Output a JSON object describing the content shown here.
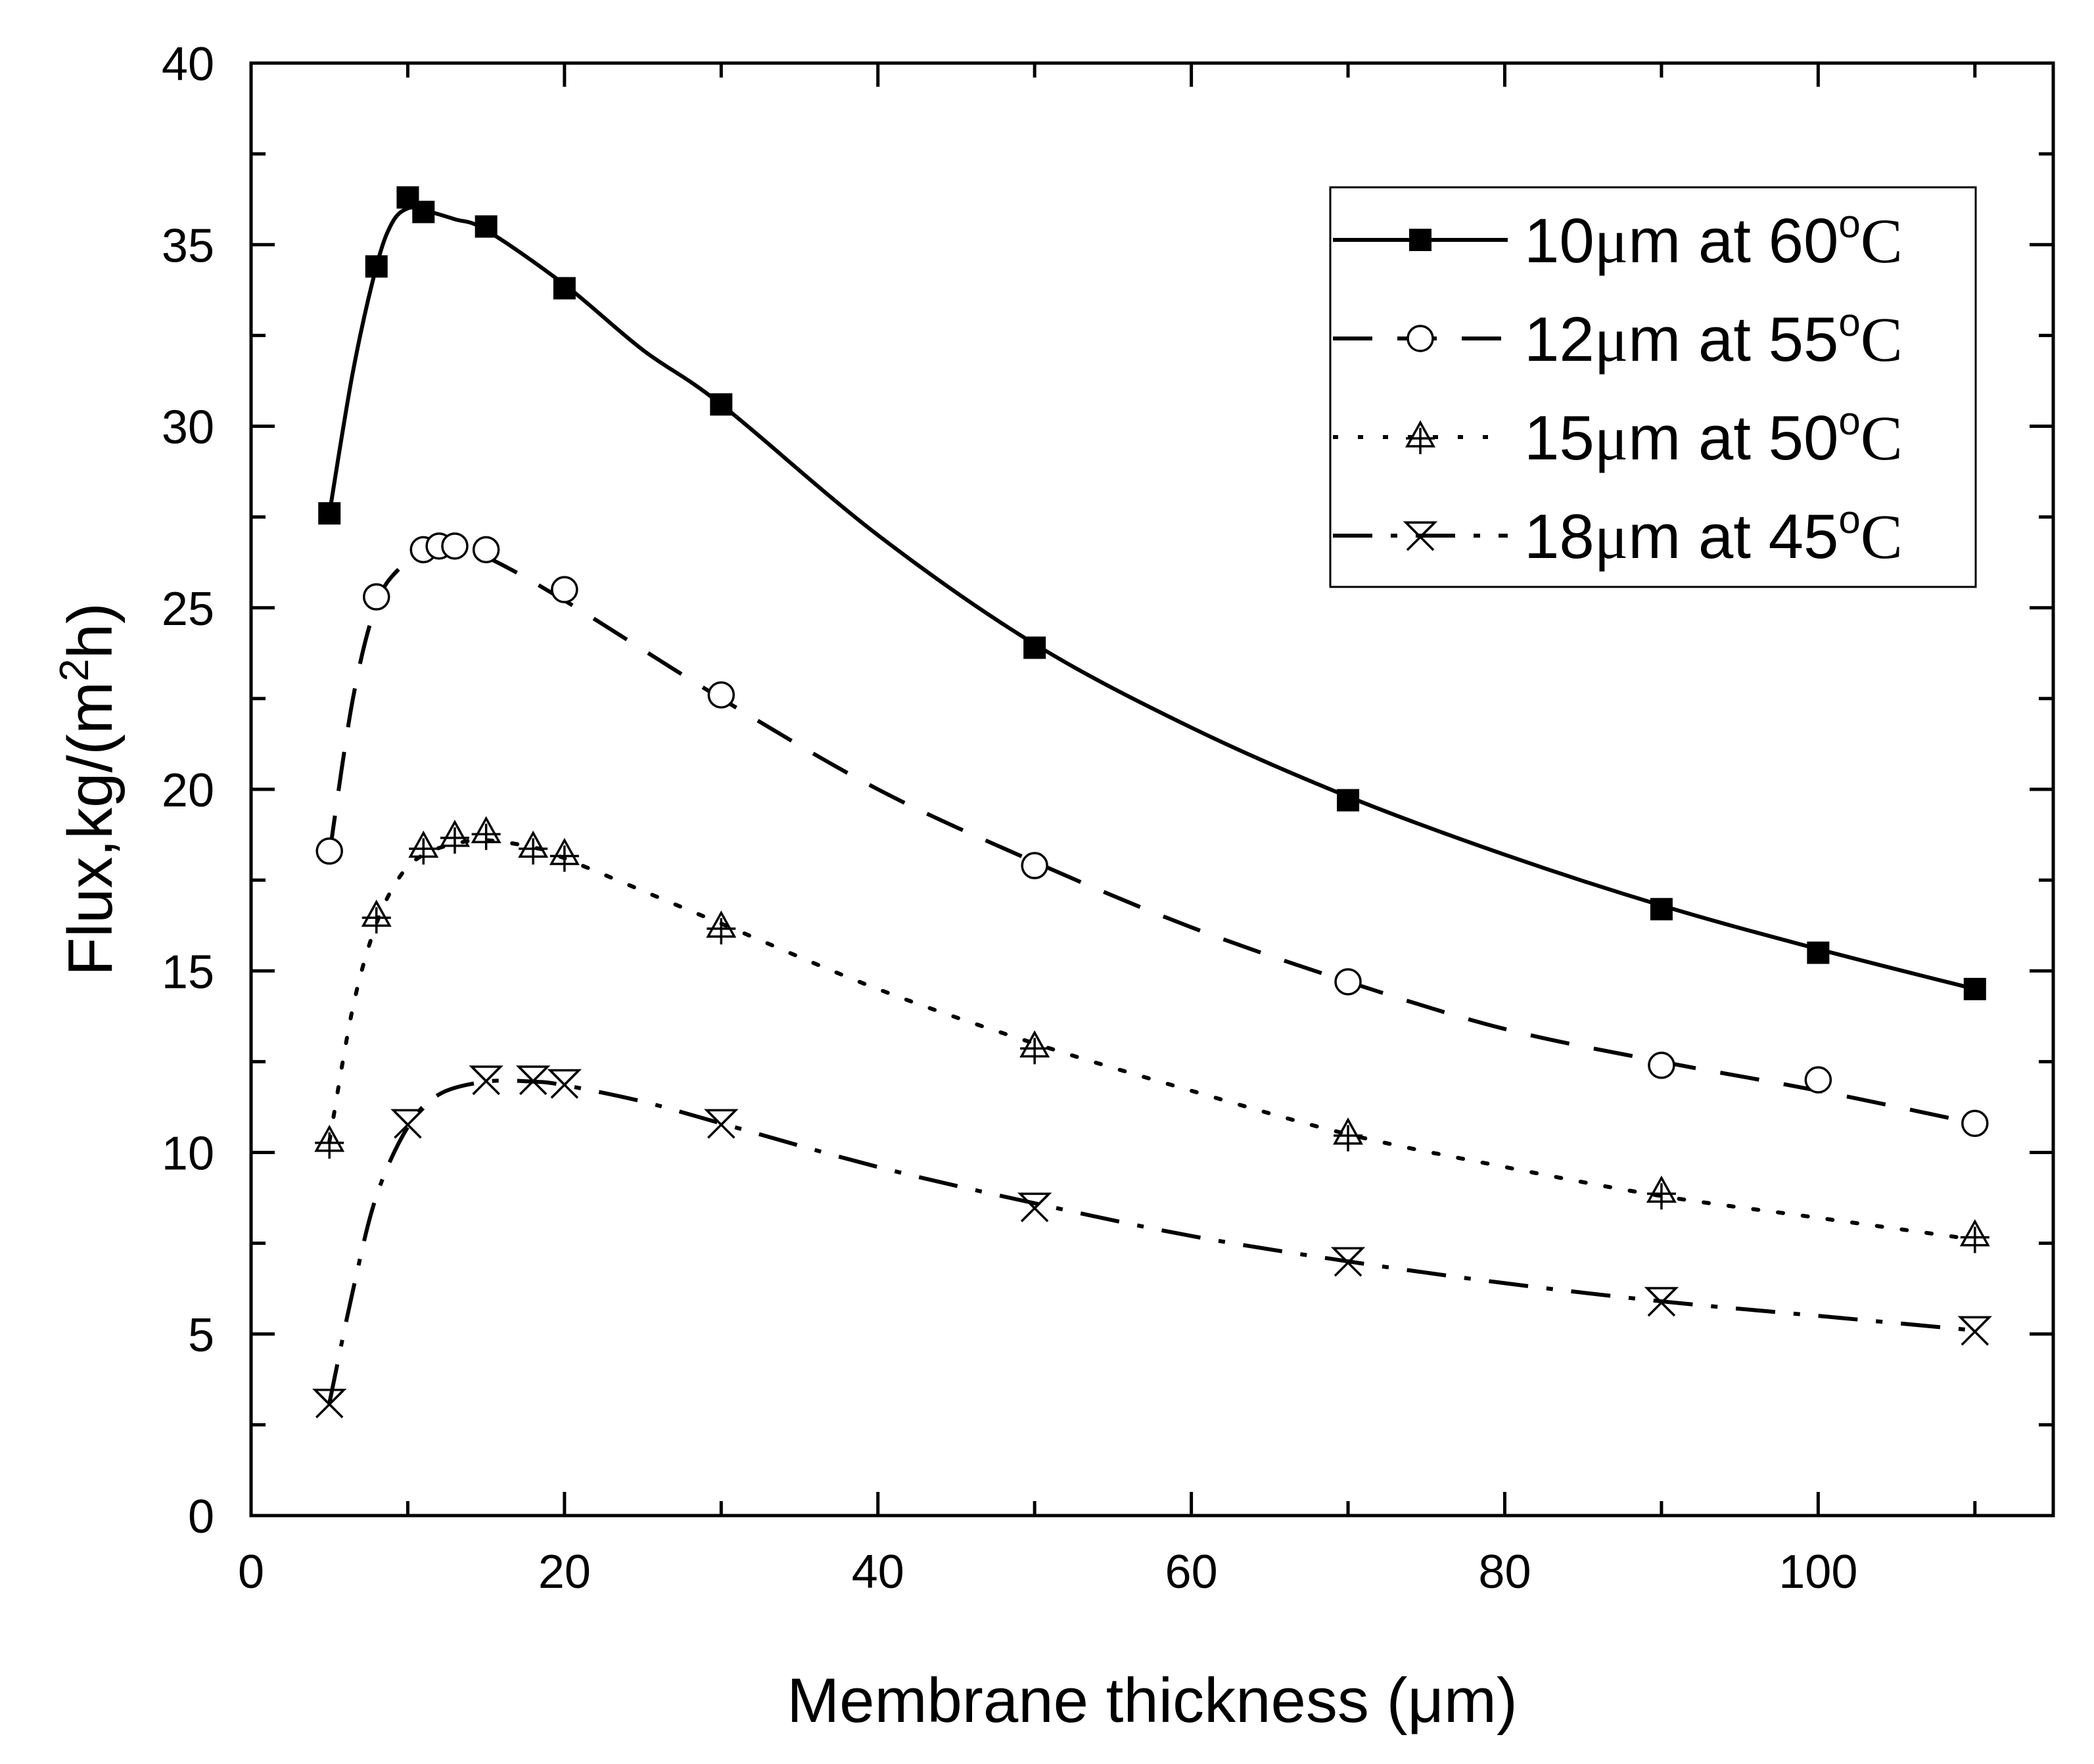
{
  "chart_data": {
    "type": "line",
    "xlabel": "Membrane thickness (μm)",
    "ylabel": {
      "prefix": "Flux,kg/(m",
      "sup": "2",
      "suffix": "h)"
    },
    "xlim": [
      0,
      115
    ],
    "ylim": [
      0,
      40
    ],
    "x_ticks": [
      0,
      20,
      40,
      60,
      80,
      100
    ],
    "y_ticks": [
      0,
      5,
      10,
      15,
      20,
      25,
      30,
      35,
      40
    ],
    "legend_position": "top-right",
    "series": [
      {
        "name": "10μm at 60°C",
        "label_parts": {
          "num": "10",
          "mu": "μ",
          "mid": "m at 60",
          "deg": "o",
          "unit": "C"
        },
        "marker": "filled-square",
        "line": "solid",
        "x": [
          5,
          8,
          10,
          11,
          15,
          20,
          30,
          50,
          70,
          90,
          100,
          110
        ],
        "y": [
          27.6,
          34.4,
          36.3,
          35.9,
          35.5,
          33.8,
          30.6,
          23.9,
          19.7,
          16.7,
          15.5,
          14.5
        ],
        "curve": [
          [
            5,
            27.6
          ],
          [
            6.5,
            31.5
          ],
          [
            8,
            34.4
          ],
          [
            9,
            35.6
          ],
          [
            10,
            36.0
          ],
          [
            11,
            35.95
          ],
          [
            13,
            35.7
          ],
          [
            15,
            35.4
          ],
          [
            20,
            33.9
          ],
          [
            25,
            32.1
          ],
          [
            30,
            30.6
          ],
          [
            40,
            27.0
          ],
          [
            50,
            24.0
          ],
          [
            60,
            21.7
          ],
          [
            70,
            19.8
          ],
          [
            80,
            18.2
          ],
          [
            90,
            16.8
          ],
          [
            100,
            15.6
          ],
          [
            110,
            14.5
          ]
        ]
      },
      {
        "name": "12μm at 55°C",
        "label_parts": {
          "num": "12",
          "mu": "μ",
          "mid": "m at 55",
          "deg": "o",
          "unit": "C"
        },
        "marker": "open-circle",
        "line": "dashed",
        "x": [
          5,
          8,
          11,
          12,
          13,
          15,
          20,
          30,
          50,
          70,
          90,
          100,
          110
        ],
        "y": [
          18.3,
          25.3,
          26.6,
          26.7,
          26.7,
          26.6,
          25.5,
          22.6,
          17.9,
          14.7,
          12.4,
          12.0,
          10.8
        ],
        "curve": [
          [
            5,
            18.2
          ],
          [
            6.5,
            22.5
          ],
          [
            8,
            25.1
          ],
          [
            9.5,
            26.1
          ],
          [
            11,
            26.5
          ],
          [
            13,
            26.6
          ],
          [
            15,
            26.4
          ],
          [
            20,
            25.2
          ],
          [
            30,
            22.5
          ],
          [
            40,
            20.0
          ],
          [
            50,
            18.0
          ],
          [
            60,
            16.2
          ],
          [
            70,
            14.7
          ],
          [
            80,
            13.4
          ],
          [
            90,
            12.5
          ],
          [
            100,
            11.7
          ],
          [
            110,
            10.8
          ]
        ]
      },
      {
        "name": "15μm at 50°C",
        "label_parts": {
          "num": "15",
          "mu": "μ",
          "mid": "m at 50",
          "deg": "o",
          "unit": "C"
        },
        "marker": "open-triangle-plus",
        "line": "dotted",
        "x": [
          5,
          8,
          11,
          13,
          15,
          18,
          20,
          30,
          50,
          70,
          90,
          110
        ],
        "y": [
          10.3,
          16.5,
          18.4,
          18.7,
          18.8,
          18.4,
          18.2,
          16.2,
          12.9,
          10.5,
          8.9,
          7.7
        ],
        "curve": [
          [
            5,
            10.3
          ],
          [
            6.5,
            14.0
          ],
          [
            8,
            16.3
          ],
          [
            9.5,
            17.6
          ],
          [
            11,
            18.2
          ],
          [
            13,
            18.5
          ],
          [
            15,
            18.6
          ],
          [
            18,
            18.4
          ],
          [
            20,
            18.1
          ],
          [
            30,
            16.3
          ],
          [
            40,
            14.5
          ],
          [
            50,
            13.0
          ],
          [
            60,
            11.7
          ],
          [
            70,
            10.5
          ],
          [
            80,
            9.6
          ],
          [
            90,
            8.8
          ],
          [
            100,
            8.2
          ],
          [
            110,
            7.6
          ]
        ]
      },
      {
        "name": "18μm at 45°C",
        "label_parts": {
          "num": "18",
          "mu": "μ",
          "mid": "m at 45",
          "deg": "o",
          "unit": "C"
        },
        "marker": "open-hourglass",
        "line": "dash-dot",
        "x": [
          5,
          10,
          15,
          18,
          20,
          30,
          50,
          70,
          90,
          110
        ],
        "y": [
          3.1,
          10.8,
          12.0,
          12.0,
          11.9,
          10.8,
          8.5,
          7.0,
          5.9,
          5.1
        ],
        "curve": [
          [
            5,
            3.1
          ],
          [
            6.5,
            6.2
          ],
          [
            8,
            8.8
          ],
          [
            10,
            10.7
          ],
          [
            12,
            11.6
          ],
          [
            15,
            11.95
          ],
          [
            18,
            11.95
          ],
          [
            20,
            11.85
          ],
          [
            25,
            11.4
          ],
          [
            30,
            10.8
          ],
          [
            40,
            9.6
          ],
          [
            50,
            8.6
          ],
          [
            60,
            7.7
          ],
          [
            70,
            7.0
          ],
          [
            80,
            6.4
          ],
          [
            90,
            5.9
          ],
          [
            100,
            5.5
          ],
          [
            110,
            5.1
          ]
        ]
      }
    ]
  }
}
